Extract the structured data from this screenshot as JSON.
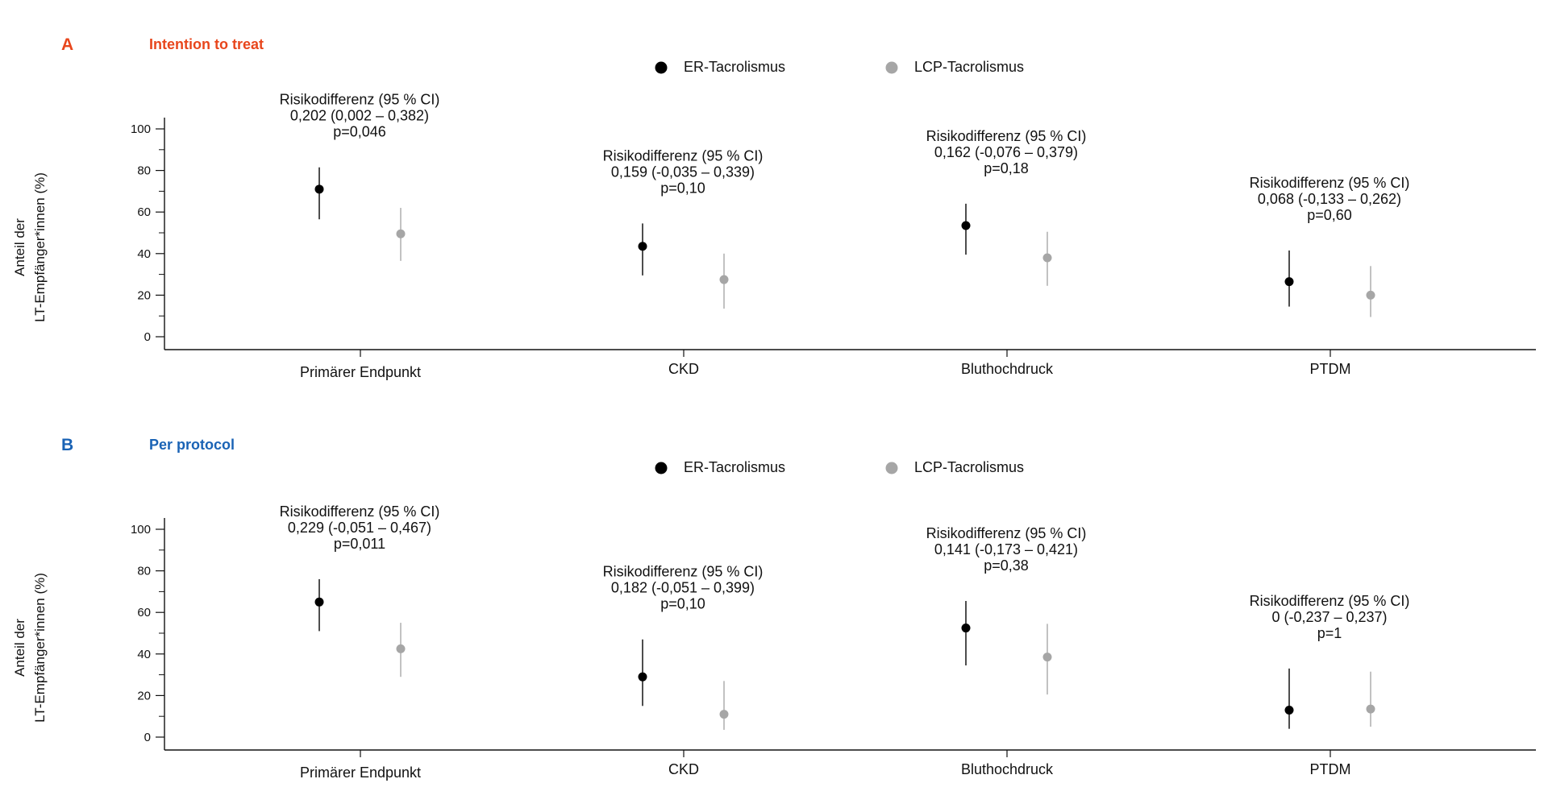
{
  "legend": {
    "series": [
      {
        "name": "ER-Tacrolismus",
        "color": "#000000"
      },
      {
        "name": "LCP-Tacrolismus",
        "color": "#a6a6a6"
      }
    ]
  },
  "ylabel_line1": "Anteil der",
  "ylabel_line2": "LT-Empfänger*innen (%)",
  "chart_data": [
    {
      "type": "scatter",
      "panel_letter": "A",
      "panel_title": "Intention to treat",
      "title_color": "#e8461c",
      "letter_color": "#e8461c",
      "categories": [
        "Primärer Endpunkt",
        "CKD",
        "Bluthochdruck",
        "PTDM"
      ],
      "y_ticks": [
        0,
        20,
        40,
        60,
        80,
        100
      ],
      "ylim": [
        0,
        100
      ],
      "series": [
        {
          "name": "ER-Tacrolismus",
          "values": [
            71,
            43.5,
            53.5,
            26.5
          ],
          "ci_low": [
            56.5,
            29.5,
            39.5,
            14.5
          ],
          "ci_high": [
            81.5,
            54.5,
            64,
            41.5
          ]
        },
        {
          "name": "LCP-Tacrolismus",
          "values": [
            49.5,
            27.5,
            38,
            20
          ],
          "ci_low": [
            36.5,
            13.5,
            24.5,
            9.5
          ],
          "ci_high": [
            62,
            40,
            50.5,
            34
          ]
        }
      ],
      "annotations": [
        {
          "line1": "Risikodifferenz (95 % CI)",
          "line2": "0,202 (0,002 – 0,382)",
          "line3": "p=0,046"
        },
        {
          "line1": "Risikodifferenz (95 % CI)",
          "line2": "0,159 (-0,035 – 0,339)",
          "line3": "p=0,10"
        },
        {
          "line1": "Risikodifferenz (95 % CI)",
          "line2": "0,162 (-0,076 – 0,379)",
          "line3": "p=0,18"
        },
        {
          "line1": "Risikodifferenz (95 % CI)",
          "line2": "0,068 (-0,133 – 0,262)",
          "line3": "p=0,60"
        }
      ]
    },
    {
      "type": "scatter",
      "panel_letter": "B",
      "panel_title": "Per protocol",
      "title_color": "#1a63b5",
      "letter_color": "#1a63b5",
      "categories": [
        "Primärer Endpunkt",
        "CKD",
        "Bluthochdruck",
        "PTDM"
      ],
      "y_ticks": [
        0,
        20,
        40,
        60,
        80,
        100
      ],
      "ylim": [
        0,
        100
      ],
      "series": [
        {
          "name": "ER-Tacrolismus",
          "values": [
            65,
            29,
            52.5,
            13
          ],
          "ci_low": [
            51,
            15,
            34.5,
            4
          ],
          "ci_high": [
            76,
            47,
            65.5,
            33
          ]
        },
        {
          "name": "LCP-Tacrolismus",
          "values": [
            42.5,
            11,
            38.5,
            13.5
          ],
          "ci_low": [
            29,
            3.5,
            20.5,
            5
          ],
          "ci_high": [
            55,
            27,
            54.5,
            31.5
          ]
        }
      ],
      "annotations": [
        {
          "line1": "Risikodifferenz (95 % CI)",
          "line2": "0,229 (-0,051 – 0,467)",
          "line3": "p=0,011"
        },
        {
          "line1": "Risikodifferenz (95 % CI)",
          "line2": "0,182 (-0,051 – 0,399)",
          "line3": "p=0,10"
        },
        {
          "line1": "Risikodifferenz (95 % CI)",
          "line2": "0,141 (-0,173 – 0,421)",
          "line3": "p=0,38"
        },
        {
          "line1": "Risikodifferenz (95 % CI)",
          "line2": "0 (-0,237 – 0,237)",
          "line3": "p=1"
        }
      ]
    }
  ]
}
